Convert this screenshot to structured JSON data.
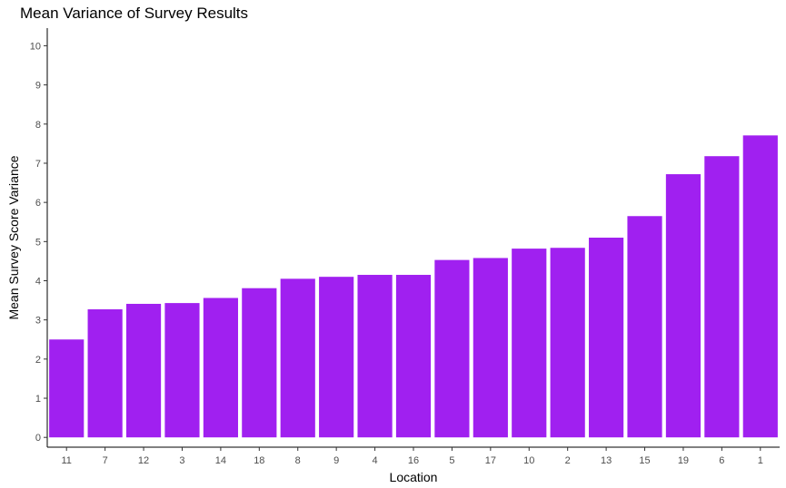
{
  "chart_data": {
    "type": "bar",
    "title": "Mean Variance of Survey Results",
    "xlabel": "Location",
    "ylabel": "Mean Survey Score Variance",
    "categories": [
      "11",
      "7",
      "12",
      "3",
      "14",
      "18",
      "8",
      "9",
      "4",
      "16",
      "5",
      "17",
      "10",
      "2",
      "13",
      "15",
      "19",
      "6",
      "1"
    ],
    "values": [
      2.5,
      3.27,
      3.41,
      3.43,
      3.56,
      3.81,
      4.05,
      4.1,
      4.15,
      4.15,
      4.53,
      4.58,
      4.82,
      4.84,
      5.1,
      5.65,
      6.72,
      7.18,
      7.71
    ],
    "yticks": [
      0,
      1,
      2,
      3,
      4,
      5,
      6,
      7,
      8,
      9,
      10
    ],
    "ylim": [
      -0.25,
      10.45
    ],
    "bar_color": "#a020f0",
    "grid": false
  }
}
